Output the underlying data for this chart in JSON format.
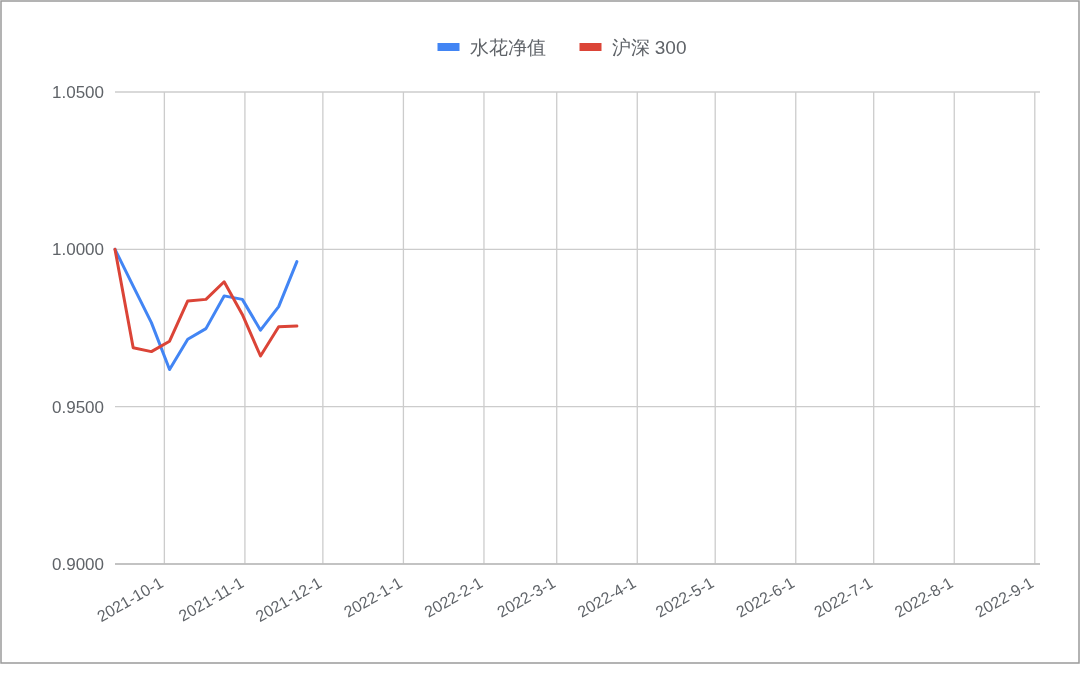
{
  "chart_data": {
    "type": "line",
    "x": [
      "2021-09-12",
      "2021-09-19",
      "2021-09-26",
      "2021-10-03",
      "2021-10-10",
      "2021-10-17",
      "2021-10-24",
      "2021-10-31",
      "2021-11-07",
      "2021-11-14",
      "2021-11-21"
    ],
    "series": [
      {
        "name": "水花净值",
        "color": "#4285f4",
        "values": [
          1.0,
          0.9883,
          0.9767,
          0.9618,
          0.9714,
          0.9748,
          0.9852,
          0.9841,
          0.9743,
          0.9818,
          0.9961
        ]
      },
      {
        "name": "沪深 300",
        "color": "#db4437",
        "values": [
          1.0,
          0.9687,
          0.9675,
          0.9708,
          0.9836,
          0.9841,
          0.9897,
          0.9793,
          0.9661,
          0.9754,
          0.9756
        ]
      }
    ],
    "xlim": [
      "2021-09-12",
      "2022-09-03"
    ],
    "xticks": [
      {
        "value": "2021-10-01",
        "label": "2021-10-1"
      },
      {
        "value": "2021-11-01",
        "label": "2021-11-1"
      },
      {
        "value": "2021-12-01",
        "label": "2021-12-1"
      },
      {
        "value": "2022-01-01",
        "label": "2022-1-1"
      },
      {
        "value": "2022-02-01",
        "label": "2022-2-1"
      },
      {
        "value": "2022-03-01",
        "label": "2022-3-1"
      },
      {
        "value": "2022-04-01",
        "label": "2022-4-1"
      },
      {
        "value": "2022-05-01",
        "label": "2022-5-1"
      },
      {
        "value": "2022-06-01",
        "label": "2022-6-1"
      },
      {
        "value": "2022-07-01",
        "label": "2022-7-1"
      },
      {
        "value": "2022-08-01",
        "label": "2022-8-1"
      },
      {
        "value": "2022-09-01",
        "label": "2022-9-1"
      }
    ],
    "ylim": [
      0.9,
      1.05
    ],
    "yticks": [
      {
        "value": 0.9,
        "label": "0.9000"
      },
      {
        "value": 0.95,
        "label": "0.9500"
      },
      {
        "value": 1.0,
        "label": "1.0000"
      },
      {
        "value": 1.05,
        "label": "1.0500"
      }
    ],
    "grid": true,
    "legend": "top",
    "marker": "none",
    "line_style": "solid"
  }
}
